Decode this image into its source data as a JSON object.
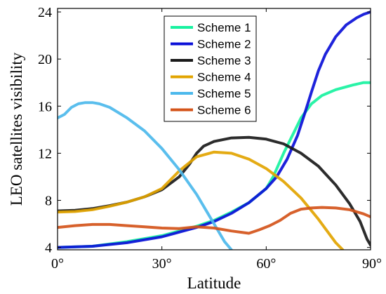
{
  "chart_data": {
    "type": "line",
    "xlabel": "Latitude",
    "ylabel": "LEO satellites visibility",
    "xlim": [
      0,
      90
    ],
    "ylim": [
      3.8,
      24.3
    ],
    "grid": false,
    "legend_position": "top-center",
    "x_ticks": [
      0,
      30,
      60,
      90
    ],
    "x_tick_labels": [
      "0°",
      "30°",
      "60°",
      "90°"
    ],
    "y_ticks": [
      4,
      8,
      12,
      16,
      20,
      24
    ],
    "y_tick_labels": [
      "4",
      "8",
      "12",
      "16",
      "20",
      "24"
    ],
    "series": [
      {
        "name": "Scheme 1",
        "color": "#18f2a0",
        "x": [
          0,
          10,
          20,
          30,
          40,
          45,
          50,
          55,
          60,
          62,
          65,
          68,
          70,
          73,
          76,
          80,
          85,
          88,
          90
        ],
        "y": [
          4.0,
          4.1,
          4.5,
          5.0,
          5.8,
          6.3,
          7.0,
          7.8,
          9.0,
          10.0,
          12.0,
          13.8,
          15.0,
          16.2,
          16.9,
          17.4,
          17.8,
          18.0,
          18.0
        ]
      },
      {
        "name": "Scheme 2",
        "color": "#0b10d8",
        "x": [
          0,
          10,
          20,
          30,
          40,
          45,
          50,
          55,
          60,
          63,
          66,
          69,
          71,
          73,
          75,
          77,
          80,
          83,
          86,
          88,
          90
        ],
        "y": [
          4.0,
          4.1,
          4.4,
          4.9,
          5.7,
          6.2,
          6.9,
          7.8,
          9.0,
          10.0,
          11.5,
          13.5,
          15.3,
          17.2,
          19.0,
          20.4,
          21.9,
          22.9,
          23.5,
          23.8,
          24.0
        ]
      },
      {
        "name": "Scheme 3",
        "color": "#1a1a1a",
        "x": [
          0,
          5,
          10,
          15,
          20,
          25,
          30,
          35,
          38,
          40,
          42,
          45,
          50,
          55,
          60,
          65,
          70,
          75,
          80,
          84,
          87,
          89,
          90
        ],
        "y": [
          7.1,
          7.15,
          7.3,
          7.55,
          7.85,
          8.3,
          8.9,
          10.0,
          11.1,
          12.0,
          12.6,
          13.0,
          13.3,
          13.35,
          13.2,
          12.8,
          12.0,
          10.9,
          9.3,
          7.7,
          6.2,
          4.7,
          4.2
        ]
      },
      {
        "name": "Scheme 4",
        "color": "#e2a400",
        "x": [
          0,
          5,
          10,
          15,
          20,
          25,
          30,
          35,
          40,
          45,
          50,
          55,
          60,
          65,
          70,
          75,
          80,
          82
        ],
        "y": [
          7.0,
          7.05,
          7.2,
          7.5,
          7.85,
          8.3,
          9.0,
          10.5,
          11.7,
          12.1,
          12.0,
          11.5,
          10.7,
          9.6,
          8.2,
          6.4,
          4.4,
          3.8
        ]
      },
      {
        "name": "Scheme 5",
        "color": "#4cb9ec",
        "x": [
          0,
          2,
          4,
          6,
          8,
          10,
          12,
          15,
          20,
          25,
          30,
          35,
          40,
          43,
          46,
          48,
          50
        ],
        "y": [
          15.0,
          15.3,
          15.9,
          16.2,
          16.3,
          16.3,
          16.2,
          15.9,
          15.0,
          13.9,
          12.4,
          10.6,
          8.5,
          7.0,
          5.5,
          4.5,
          3.8
        ]
      },
      {
        "name": "Scheme 6",
        "color": "#d4541a",
        "x": [
          0,
          5,
          10,
          15,
          20,
          25,
          30,
          35,
          40,
          45,
          50,
          55,
          58,
          61,
          64,
          67,
          70,
          73,
          76,
          80,
          84,
          88,
          90
        ],
        "y": [
          5.7,
          5.85,
          5.95,
          5.95,
          5.85,
          5.75,
          5.65,
          5.6,
          5.75,
          5.65,
          5.4,
          5.2,
          5.5,
          5.85,
          6.3,
          6.9,
          7.25,
          7.35,
          7.4,
          7.35,
          7.2,
          6.85,
          6.6
        ]
      }
    ]
  }
}
